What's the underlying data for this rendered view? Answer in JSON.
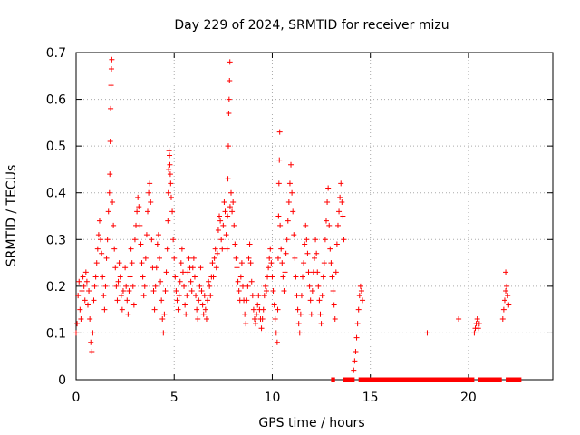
{
  "chart_data": {
    "type": "scatter",
    "title": "Day 229 of 2024, SRMTID for receiver mizu",
    "xlabel": "GPS time / hours",
    "ylabel": "SRMTID / TECUs",
    "xlim": [
      0,
      24.3
    ],
    "ylim": [
      0,
      0.7
    ],
    "xticks": [
      0,
      5,
      10,
      15,
      20
    ],
    "yticks": [
      0,
      0.1,
      0.2,
      0.3,
      0.4,
      0.5,
      0.6,
      0.7
    ],
    "grid": true,
    "marker": "+",
    "color": "#ff0000",
    "series": [
      {
        "name": "SRMTID",
        "points": [
          [
            0.0,
            0.1
          ],
          [
            0.05,
            0.12
          ],
          [
            0.1,
            0.18
          ],
          [
            0.15,
            0.21
          ],
          [
            0.2,
            0.15
          ],
          [
            0.25,
            0.13
          ],
          [
            0.3,
            0.19
          ],
          [
            0.35,
            0.22
          ],
          [
            0.4,
            0.2
          ],
          [
            0.45,
            0.17
          ],
          [
            0.5,
            0.23
          ],
          [
            0.55,
            0.21
          ],
          [
            0.6,
            0.16
          ],
          [
            0.65,
            0.19
          ],
          [
            0.7,
            0.13
          ],
          [
            0.75,
            0.08
          ],
          [
            0.8,
            0.06
          ],
          [
            0.85,
            0.1
          ],
          [
            0.9,
            0.17
          ],
          [
            0.95,
            0.2
          ],
          [
            1.0,
            0.22
          ],
          [
            1.05,
            0.25
          ],
          [
            1.1,
            0.28
          ],
          [
            1.15,
            0.31
          ],
          [
            1.2,
            0.34
          ],
          [
            1.25,
            0.3
          ],
          [
            1.3,
            0.27
          ],
          [
            1.35,
            0.22
          ],
          [
            1.4,
            0.18
          ],
          [
            1.45,
            0.15
          ],
          [
            1.5,
            0.2
          ],
          [
            1.55,
            0.26
          ],
          [
            1.6,
            0.3
          ],
          [
            1.65,
            0.36
          ],
          [
            1.7,
            0.4
          ],
          [
            1.72,
            0.44
          ],
          [
            1.74,
            0.51
          ],
          [
            1.76,
            0.58
          ],
          [
            1.78,
            0.63
          ],
          [
            1.8,
            0.665
          ],
          [
            1.82,
            0.685
          ],
          [
            1.85,
            0.38
          ],
          [
            1.9,
            0.33
          ],
          [
            1.95,
            0.28
          ],
          [
            2.0,
            0.24
          ],
          [
            2.05,
            0.2
          ],
          [
            2.1,
            0.17
          ],
          [
            2.15,
            0.21
          ],
          [
            2.2,
            0.25
          ],
          [
            2.25,
            0.22
          ],
          [
            2.3,
            0.18
          ],
          [
            2.35,
            0.15
          ],
          [
            2.4,
            0.19
          ],
          [
            2.5,
            0.24
          ],
          [
            2.55,
            0.2
          ],
          [
            2.6,
            0.17
          ],
          [
            2.65,
            0.14
          ],
          [
            2.7,
            0.19
          ],
          [
            2.75,
            0.22
          ],
          [
            2.8,
            0.28
          ],
          [
            2.85,
            0.25
          ],
          [
            2.9,
            0.2
          ],
          [
            2.95,
            0.16
          ],
          [
            3.0,
            0.3
          ],
          [
            3.05,
            0.33
          ],
          [
            3.1,
            0.36
          ],
          [
            3.15,
            0.39
          ],
          [
            3.2,
            0.37
          ],
          [
            3.25,
            0.33
          ],
          [
            3.3,
            0.29
          ],
          [
            3.35,
            0.25
          ],
          [
            3.4,
            0.22
          ],
          [
            3.45,
            0.18
          ],
          [
            3.5,
            0.2
          ],
          [
            3.55,
            0.26
          ],
          [
            3.6,
            0.31
          ],
          [
            3.65,
            0.36
          ],
          [
            3.7,
            0.4
          ],
          [
            3.75,
            0.42
          ],
          [
            3.8,
            0.38
          ],
          [
            3.85,
            0.3
          ],
          [
            3.9,
            0.24
          ],
          [
            3.95,
            0.19
          ],
          [
            4.0,
            0.15
          ],
          [
            4.05,
            0.2
          ],
          [
            4.1,
            0.24
          ],
          [
            4.15,
            0.29
          ],
          [
            4.2,
            0.31
          ],
          [
            4.25,
            0.26
          ],
          [
            4.3,
            0.21
          ],
          [
            4.35,
            0.17
          ],
          [
            4.4,
            0.13
          ],
          [
            4.45,
            0.1
          ],
          [
            4.5,
            0.14
          ],
          [
            4.55,
            0.19
          ],
          [
            4.6,
            0.23
          ],
          [
            4.65,
            0.28
          ],
          [
            4.68,
            0.34
          ],
          [
            4.7,
            0.4
          ],
          [
            4.72,
            0.45
          ],
          [
            4.74,
            0.49
          ],
          [
            4.76,
            0.48
          ],
          [
            4.78,
            0.46
          ],
          [
            4.8,
            0.44
          ],
          [
            4.82,
            0.42
          ],
          [
            4.85,
            0.39
          ],
          [
            4.9,
            0.36
          ],
          [
            4.95,
            0.3
          ],
          [
            5.0,
            0.26
          ],
          [
            5.05,
            0.22
          ],
          [
            5.1,
            0.19
          ],
          [
            5.15,
            0.17
          ],
          [
            5.2,
            0.15
          ],
          [
            5.25,
            0.18
          ],
          [
            5.3,
            0.21
          ],
          [
            5.35,
            0.25
          ],
          [
            5.4,
            0.28
          ],
          [
            5.45,
            0.23
          ],
          [
            5.5,
            0.2
          ],
          [
            5.55,
            0.16
          ],
          [
            5.6,
            0.14
          ],
          [
            5.65,
            0.18
          ],
          [
            5.7,
            0.23
          ],
          [
            5.75,
            0.26
          ],
          [
            5.8,
            0.24
          ],
          [
            5.85,
            0.21
          ],
          [
            5.9,
            0.19
          ],
          [
            5.95,
            0.24
          ],
          [
            6.0,
            0.26
          ],
          [
            6.05,
            0.22
          ],
          [
            6.1,
            0.18
          ],
          [
            6.15,
            0.15
          ],
          [
            6.2,
            0.13
          ],
          [
            6.25,
            0.17
          ],
          [
            6.3,
            0.2
          ],
          [
            6.35,
            0.24
          ],
          [
            6.4,
            0.19
          ],
          [
            6.45,
            0.16
          ],
          [
            6.5,
            0.14
          ],
          [
            6.55,
            0.18
          ],
          [
            6.6,
            0.15
          ],
          [
            6.65,
            0.13
          ],
          [
            6.7,
            0.17
          ],
          [
            6.75,
            0.21
          ],
          [
            6.8,
            0.2
          ],
          [
            6.85,
            0.18
          ],
          [
            6.9,
            0.22
          ],
          [
            6.95,
            0.25
          ],
          [
            7.0,
            0.22
          ],
          [
            7.05,
            0.26
          ],
          [
            7.1,
            0.28
          ],
          [
            7.15,
            0.24
          ],
          [
            7.2,
            0.27
          ],
          [
            7.25,
            0.32
          ],
          [
            7.3,
            0.35
          ],
          [
            7.35,
            0.34
          ],
          [
            7.4,
            0.3
          ],
          [
            7.45,
            0.28
          ],
          [
            7.5,
            0.33
          ],
          [
            7.55,
            0.38
          ],
          [
            7.6,
            0.36
          ],
          [
            7.65,
            0.31
          ],
          [
            7.7,
            0.28
          ],
          [
            7.72,
            0.35
          ],
          [
            7.74,
            0.43
          ],
          [
            7.76,
            0.5
          ],
          [
            7.78,
            0.57
          ],
          [
            7.8,
            0.6
          ],
          [
            7.82,
            0.64
          ],
          [
            7.84,
            0.68
          ],
          [
            7.85,
            0.37
          ],
          [
            7.9,
            0.4
          ],
          [
            7.95,
            0.36
          ],
          [
            8.0,
            0.38
          ],
          [
            8.05,
            0.33
          ],
          [
            8.1,
            0.29
          ],
          [
            8.15,
            0.26
          ],
          [
            8.2,
            0.24
          ],
          [
            8.25,
            0.21
          ],
          [
            8.3,
            0.19
          ],
          [
            8.35,
            0.17
          ],
          [
            8.4,
            0.22
          ],
          [
            8.45,
            0.25
          ],
          [
            8.5,
            0.2
          ],
          [
            8.55,
            0.17
          ],
          [
            8.6,
            0.14
          ],
          [
            8.65,
            0.12
          ],
          [
            8.7,
            0.17
          ],
          [
            8.75,
            0.2
          ],
          [
            8.8,
            0.26
          ],
          [
            8.85,
            0.29
          ],
          [
            8.9,
            0.25
          ],
          [
            8.95,
            0.21
          ],
          [
            9.0,
            0.18
          ],
          [
            9.05,
            0.15
          ],
          [
            9.1,
            0.13
          ],
          [
            9.15,
            0.12
          ],
          [
            9.2,
            0.14
          ],
          [
            9.25,
            0.16
          ],
          [
            9.3,
            0.18
          ],
          [
            9.35,
            0.15
          ],
          [
            9.4,
            0.13
          ],
          [
            9.45,
            0.11
          ],
          [
            9.5,
            0.13
          ],
          [
            9.55,
            0.15
          ],
          [
            9.6,
            0.18
          ],
          [
            9.65,
            0.2
          ],
          [
            9.7,
            0.19
          ],
          [
            9.75,
            0.22
          ],
          [
            9.8,
            0.24
          ],
          [
            9.85,
            0.26
          ],
          [
            9.9,
            0.28
          ],
          [
            9.95,
            0.25
          ],
          [
            10.0,
            0.22
          ],
          [
            10.05,
            0.19
          ],
          [
            10.1,
            0.16
          ],
          [
            10.15,
            0.13
          ],
          [
            10.2,
            0.1
          ],
          [
            10.25,
            0.08
          ],
          [
            10.28,
            0.15
          ],
          [
            10.3,
            0.26
          ],
          [
            10.32,
            0.35
          ],
          [
            10.34,
            0.42
          ],
          [
            10.36,
            0.47
          ],
          [
            10.38,
            0.53
          ],
          [
            10.4,
            0.33
          ],
          [
            10.45,
            0.28
          ],
          [
            10.5,
            0.25
          ],
          [
            10.55,
            0.22
          ],
          [
            10.6,
            0.19
          ],
          [
            10.65,
            0.23
          ],
          [
            10.7,
            0.27
          ],
          [
            10.75,
            0.3
          ],
          [
            10.8,
            0.34
          ],
          [
            10.85,
            0.38
          ],
          [
            10.9,
            0.42
          ],
          [
            10.95,
            0.46
          ],
          [
            11.0,
            0.4
          ],
          [
            11.05,
            0.36
          ],
          [
            11.1,
            0.31
          ],
          [
            11.15,
            0.26
          ],
          [
            11.2,
            0.22
          ],
          [
            11.25,
            0.18
          ],
          [
            11.3,
            0.15
          ],
          [
            11.35,
            0.12
          ],
          [
            11.4,
            0.1
          ],
          [
            11.45,
            0.14
          ],
          [
            11.5,
            0.18
          ],
          [
            11.55,
            0.22
          ],
          [
            11.6,
            0.25
          ],
          [
            11.65,
            0.29
          ],
          [
            11.7,
            0.33
          ],
          [
            11.75,
            0.3
          ],
          [
            11.8,
            0.27
          ],
          [
            11.85,
            0.23
          ],
          [
            11.9,
            0.2
          ],
          [
            11.95,
            0.17
          ],
          [
            12.0,
            0.14
          ],
          [
            12.05,
            0.19
          ],
          [
            12.1,
            0.23
          ],
          [
            12.15,
            0.26
          ],
          [
            12.2,
            0.3
          ],
          [
            12.25,
            0.27
          ],
          [
            12.3,
            0.23
          ],
          [
            12.35,
            0.2
          ],
          [
            12.4,
            0.17
          ],
          [
            12.45,
            0.14
          ],
          [
            12.5,
            0.12
          ],
          [
            12.55,
            0.18
          ],
          [
            12.6,
            0.22
          ],
          [
            12.65,
            0.25
          ],
          [
            12.7,
            0.3
          ],
          [
            12.75,
            0.34
          ],
          [
            12.8,
            0.38
          ],
          [
            12.85,
            0.41
          ],
          [
            12.9,
            0.33
          ],
          [
            12.95,
            0.28
          ],
          [
            13.0,
            0.25
          ],
          [
            13.05,
            0.22
          ],
          [
            13.1,
            0.19
          ],
          [
            13.15,
            0.16
          ],
          [
            13.2,
            0.13
          ],
          [
            13.25,
            0.23
          ],
          [
            13.3,
            0.29
          ],
          [
            13.35,
            0.33
          ],
          [
            13.4,
            0.36
          ],
          [
            13.45,
            0.39
          ],
          [
            13.5,
            0.42
          ],
          [
            13.55,
            0.38
          ],
          [
            13.6,
            0.35
          ],
          [
            13.65,
            0.3
          ],
          [
            14.15,
            0.02
          ],
          [
            14.2,
            0.04
          ],
          [
            14.25,
            0.06
          ],
          [
            14.3,
            0.09
          ],
          [
            14.35,
            0.12
          ],
          [
            14.4,
            0.15
          ],
          [
            14.45,
            0.18
          ],
          [
            14.5,
            0.2
          ],
          [
            14.55,
            0.19
          ],
          [
            14.6,
            0.17
          ],
          [
            17.9,
            0.1
          ],
          [
            19.5,
            0.13
          ],
          [
            20.3,
            0.1
          ],
          [
            20.35,
            0.11
          ],
          [
            20.4,
            0.12
          ],
          [
            20.45,
            0.13
          ],
          [
            20.5,
            0.11
          ],
          [
            20.55,
            0.12
          ],
          [
            21.75,
            0.13
          ],
          [
            21.8,
            0.15
          ],
          [
            21.85,
            0.17
          ],
          [
            21.9,
            0.19
          ],
          [
            21.95,
            0.2
          ],
          [
            22.0,
            0.18
          ],
          [
            22.05,
            0.16
          ],
          [
            21.9,
            0.23
          ]
        ]
      }
    ],
    "baseline_segments": [
      [
        13.0,
        13.2
      ],
      [
        13.6,
        14.2
      ],
      [
        14.4,
        20.3
      ],
      [
        20.5,
        21.7
      ],
      [
        21.9,
        22.7
      ]
    ]
  }
}
